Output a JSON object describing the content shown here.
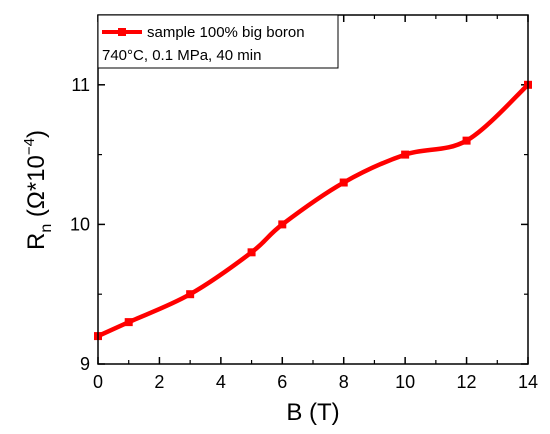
{
  "chart_data": {
    "type": "line",
    "xlabel": "B (T)",
    "ylabel_main": "R",
    "ylabel_sub": "n",
    "ylabel_unit_open": " (Ω*10",
    "ylabel_unit_exp": "−4",
    "ylabel_unit_close": ")",
    "xlim": [
      0,
      14
    ],
    "ylim": [
      9,
      11.5
    ],
    "x_ticks": [
      0,
      2,
      4,
      6,
      8,
      10,
      12,
      14
    ],
    "y_ticks": [
      9,
      10,
      11
    ],
    "x_tick_labels": [
      "0",
      "2",
      "4",
      "6",
      "8",
      "10",
      "12",
      "14"
    ],
    "y_tick_labels": [
      "9",
      "10",
      "11"
    ],
    "grid": false,
    "legend_position": "top-left",
    "legend_lines": [
      "sample 100% big boron",
      "740°C, 0.1 MPa, 40 min"
    ],
    "series": [
      {
        "name": "sample 100% big boron",
        "color": "#ff0000",
        "marker": "square",
        "x": [
          0,
          1,
          3,
          5,
          6,
          8,
          10,
          12,
          14
        ],
        "y": [
          9.2,
          9.3,
          9.5,
          9.8,
          10.0,
          10.3,
          10.5,
          10.6,
          11.0
        ]
      }
    ]
  }
}
